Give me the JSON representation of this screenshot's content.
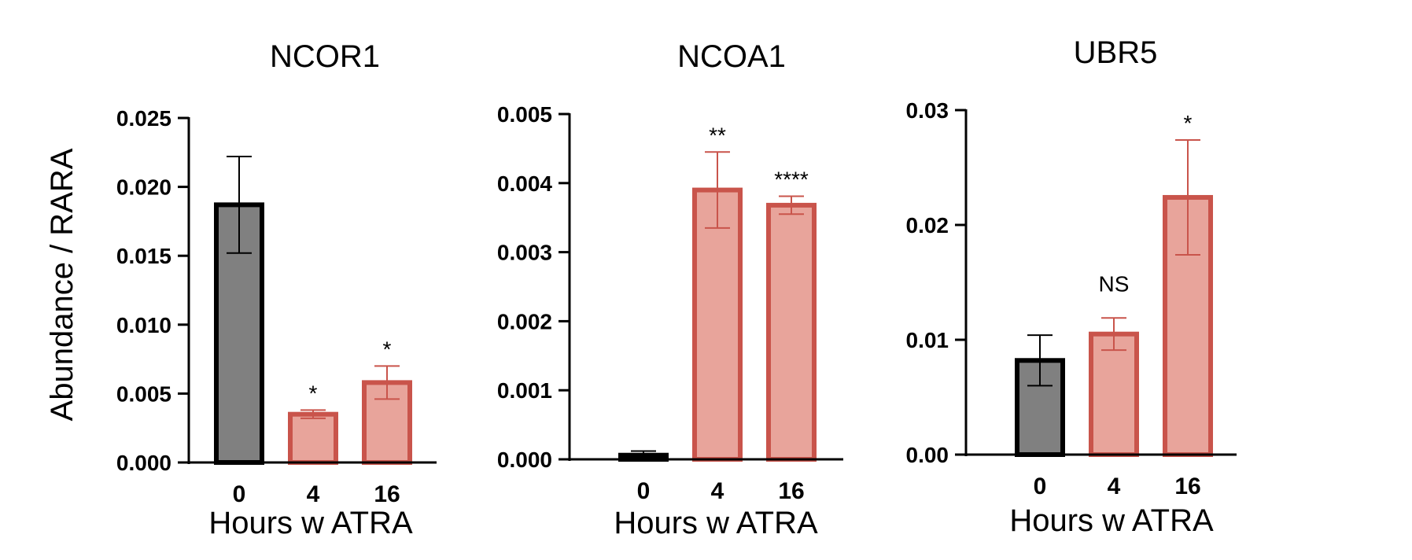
{
  "chart_data": [
    {
      "type": "bar",
      "title": "NCOR1",
      "xlabel": "Hours w ATRA",
      "ylabel": "Abundance / RARA",
      "categories": [
        "0",
        "4",
        "16"
      ],
      "values": [
        0.0187,
        0.0035,
        0.0058
      ],
      "errors": [
        0.0035,
        0.0003,
        0.0012
      ],
      "significance": [
        "",
        "*",
        "*"
      ],
      "ylim": [
        0,
        0.025
      ],
      "yticks": [
        0.0,
        0.005,
        0.01,
        0.015,
        0.02,
        0.025
      ],
      "ytick_labels": [
        "0.000",
        "0.005",
        "0.010",
        "0.015",
        "0.020",
        "0.025"
      ],
      "colors": [
        "#808080",
        "#e8a49b",
        "#e8a49b"
      ],
      "edge_colors": [
        "#000000",
        "#c9544b",
        "#c9544b"
      ]
    },
    {
      "type": "bar",
      "title": "NCOA1",
      "xlabel": "Hours w ATRA",
      "ylabel": "",
      "categories": [
        "0",
        "4",
        "16"
      ],
      "values": [
        6e-05,
        0.0039,
        0.00368
      ],
      "errors": [
        6e-05,
        0.00055,
        0.00013
      ],
      "significance": [
        "",
        "**",
        "****"
      ],
      "ylim": [
        0,
        0.005
      ],
      "yticks": [
        0.0,
        0.001,
        0.002,
        0.003,
        0.004,
        0.005
      ],
      "ytick_labels": [
        "0.000",
        "0.001",
        "0.002",
        "0.003",
        "0.004",
        "0.005"
      ],
      "colors": [
        "#808080",
        "#e8a49b",
        "#e8a49b"
      ],
      "edge_colors": [
        "#000000",
        "#c9544b",
        "#c9544b"
      ]
    },
    {
      "type": "bar",
      "title": "UBR5",
      "xlabel": "Hours w ATRA",
      "ylabel": "",
      "categories": [
        "0",
        "4",
        "16"
      ],
      "values": [
        0.0082,
        0.0105,
        0.0224
      ],
      "errors": [
        0.0022,
        0.0014,
        0.005
      ],
      "significance": [
        "",
        "NS",
        "*"
      ],
      "ylim": [
        0,
        0.03
      ],
      "yticks": [
        0.0,
        0.01,
        0.02,
        0.03
      ],
      "ytick_labels": [
        "0.00",
        "0.01",
        "0.02",
        "0.03"
      ],
      "colors": [
        "#808080",
        "#e8a49b",
        "#e8a49b"
      ],
      "edge_colors": [
        "#000000",
        "#c9544b",
        "#c9544b"
      ]
    }
  ]
}
